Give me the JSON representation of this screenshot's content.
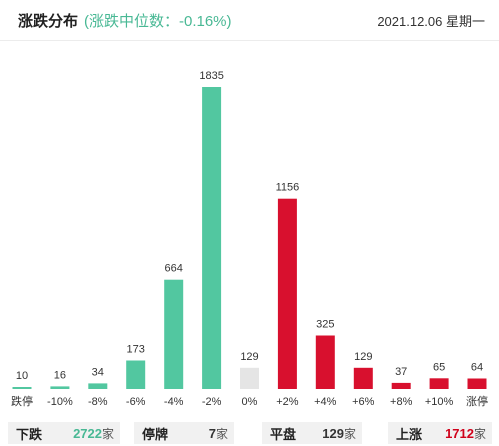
{
  "header": {
    "title": "涨跌分布",
    "subtitle": "(涨跌中位数：-0.16%)",
    "date": "2021.12.06 星期一"
  },
  "colors": {
    "down": "#52c7a0",
    "flat": "#e5e5e5",
    "up": "#d8102e"
  },
  "chart_data": {
    "type": "bar",
    "categories": [
      "跌停",
      "-10%",
      "-8%",
      "-6%",
      "-4%",
      "-2%",
      "0%",
      "+2%",
      "+4%",
      "+6%",
      "+8%",
      "+10%",
      "涨停"
    ],
    "values": [
      10,
      16,
      34,
      173,
      664,
      1835,
      129,
      1156,
      325,
      129,
      37,
      65,
      64
    ],
    "value_labels": [
      "10",
      "16",
      "34",
      "173",
      "664",
      "1835",
      "129",
      "1156",
      "325",
      "129",
      "37",
      "65",
      "64"
    ],
    "bar_colors": [
      "down",
      "down",
      "down",
      "down",
      "down",
      "down",
      "flat",
      "up",
      "up",
      "up",
      "up",
      "up",
      "up"
    ],
    "title": "",
    "xlabel": "",
    "ylabel": "",
    "ylim": [
      0,
      1835
    ],
    "grid": false,
    "legend": "none"
  },
  "footer": {
    "down": {
      "label": "下跌",
      "value": "2722",
      "unit": "家"
    },
    "halt": {
      "label": "停牌",
      "value": "7",
      "unit": "家"
    },
    "flat": {
      "label": "平盘",
      "value": "129",
      "unit": "家"
    },
    "up": {
      "label": "上涨",
      "value": "1712",
      "unit": "家"
    }
  }
}
